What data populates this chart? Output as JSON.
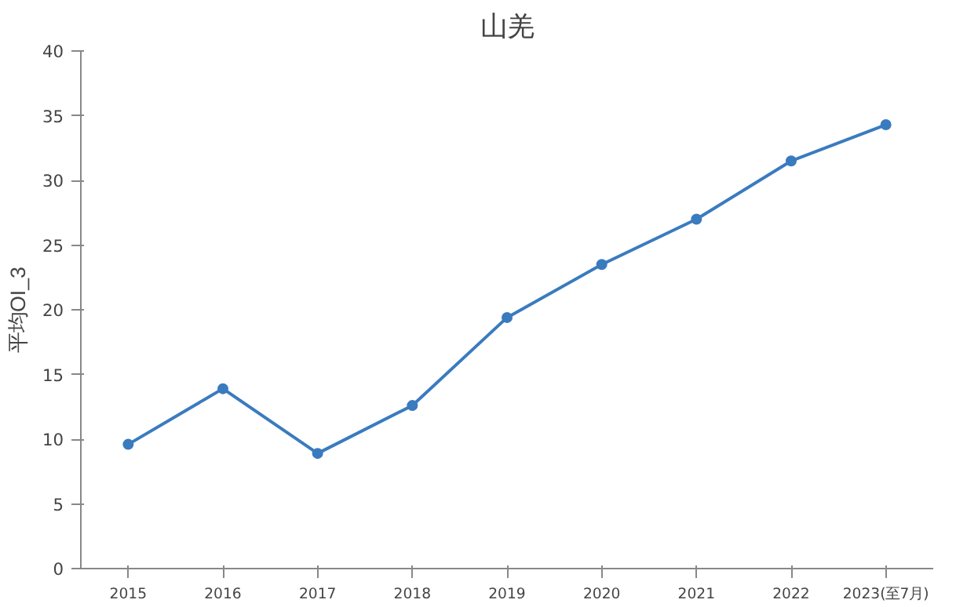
{
  "chart_data": {
    "type": "line",
    "title": "山羌",
    "ylabel": "平均OI_3",
    "categories": [
      "2015",
      "2016",
      "2017",
      "2018",
      "2019",
      "2020",
      "2021",
      "2022",
      "2023(至7月)"
    ],
    "series": [
      {
        "color": "#3a7bbf",
        "values": [
          9.6,
          13.9,
          8.9,
          12.6,
          19.4,
          23.5,
          27.0,
          31.5,
          34.3
        ]
      }
    ],
    "ylim": [
      0,
      40
    ],
    "yticks": [
      0,
      5,
      10,
      15,
      20,
      25,
      30,
      35,
      40
    ],
    "grid": false,
    "marker": "circle",
    "line_style": "solid"
  }
}
